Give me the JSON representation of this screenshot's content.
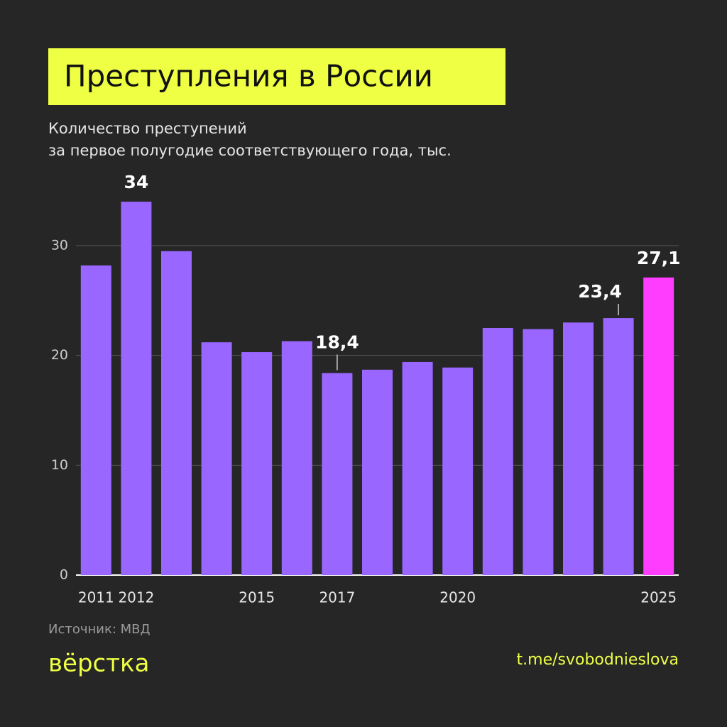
{
  "chart_data": {
    "type": "bar",
    "title": "Преступления в России",
    "subtitle": [
      "Количество преступений",
      "за первое полугодие соответствующего года, тыс."
    ],
    "categories": [
      "2011",
      "2012",
      null,
      null,
      "2015",
      null,
      "2017",
      null,
      null,
      "2020",
      null,
      null,
      null,
      null,
      "2025"
    ],
    "values": [
      28.2,
      34,
      29.5,
      21.2,
      20.3,
      21.3,
      18.4,
      18.7,
      19.4,
      18.9,
      22.5,
      22.4,
      23.0,
      23.4,
      27.1
    ],
    "value_labels": [
      null,
      "34",
      null,
      null,
      null,
      null,
      "18,4",
      null,
      null,
      null,
      null,
      null,
      null,
      "23,4",
      "27,1"
    ],
    "colors": [
      "#9966ff",
      "#9966ff",
      "#9966ff",
      "#9966ff",
      "#9966ff",
      "#9966ff",
      "#9966ff",
      "#9966ff",
      "#9966ff",
      "#9966ff",
      "#9966ff",
      "#9966ff",
      "#9966ff",
      "#9966ff",
      "#ff3dff"
    ],
    "ylim": [
      0,
      30
    ],
    "yticks": [
      0,
      10,
      20,
      30
    ],
    "grid": true,
    "source": "Источник: МВД",
    "brand": "вёрстка",
    "link": "t.me/svobodnieslova"
  }
}
